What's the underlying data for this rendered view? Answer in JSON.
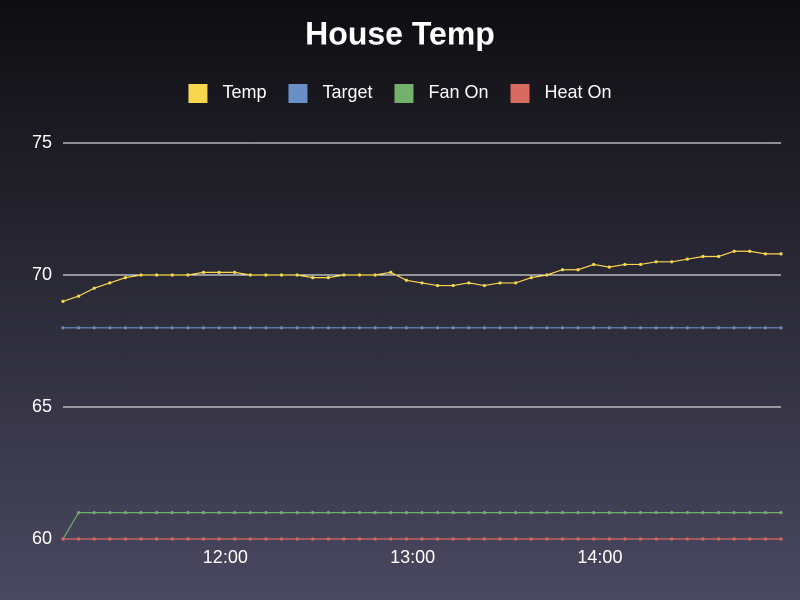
{
  "chart_data": {
    "type": "line",
    "title": "House Temp",
    "x": [
      "11:08",
      "11:13",
      "11:18",
      "11:23",
      "11:28",
      "11:33",
      "11:38",
      "11:43",
      "11:48",
      "11:53",
      "11:58",
      "12:03",
      "12:08",
      "12:13",
      "12:18",
      "12:23",
      "12:28",
      "12:33",
      "12:38",
      "12:43",
      "12:48",
      "12:53",
      "12:58",
      "13:03",
      "13:08",
      "13:13",
      "13:18",
      "13:23",
      "13:28",
      "13:33",
      "13:38",
      "13:43",
      "13:48",
      "13:53",
      "13:58",
      "14:03",
      "14:08",
      "14:13",
      "14:18",
      "14:23",
      "14:28",
      "14:33",
      "14:38",
      "14:43",
      "14:48",
      "14:53",
      "14:58"
    ],
    "series": [
      {
        "name": "Temp",
        "color": "#f8d64e",
        "values": [
          69.0,
          69.2,
          69.5,
          69.7,
          69.9,
          70.0,
          70.0,
          70.0,
          70.0,
          70.1,
          70.1,
          70.1,
          70.0,
          70.0,
          70.0,
          70.0,
          69.9,
          69.9,
          70.0,
          70.0,
          70.0,
          70.1,
          69.8,
          69.7,
          69.6,
          69.6,
          69.7,
          69.6,
          69.7,
          69.7,
          69.9,
          70.0,
          70.2,
          70.2,
          70.4,
          70.3,
          70.4,
          70.4,
          70.5,
          70.5,
          70.6,
          70.7,
          70.7,
          70.9,
          70.9,
          70.8,
          70.8
        ]
      },
      {
        "name": "Target",
        "color": "#6a8fc4",
        "values": [
          68,
          68,
          68,
          68,
          68,
          68,
          68,
          68,
          68,
          68,
          68,
          68,
          68,
          68,
          68,
          68,
          68,
          68,
          68,
          68,
          68,
          68,
          68,
          68,
          68,
          68,
          68,
          68,
          68,
          68,
          68,
          68,
          68,
          68,
          68,
          68,
          68,
          68,
          68,
          68,
          68,
          68,
          68,
          68,
          68,
          68,
          68
        ]
      },
      {
        "name": "Fan On",
        "color": "#72b06c",
        "values": [
          60,
          61,
          61,
          61,
          61,
          61,
          61,
          61,
          61,
          61,
          61,
          61,
          61,
          61,
          61,
          61,
          61,
          61,
          61,
          61,
          61,
          61,
          61,
          61,
          61,
          61,
          61,
          61,
          61,
          61,
          61,
          61,
          61,
          61,
          61,
          61,
          61,
          61,
          61,
          61,
          61,
          61,
          61,
          61,
          61,
          61,
          61
        ]
      },
      {
        "name": "Heat On",
        "color": "#d86a5f",
        "values": [
          60,
          60,
          60,
          60,
          60,
          60,
          60,
          60,
          60,
          60,
          60,
          60,
          60,
          60,
          60,
          60,
          60,
          60,
          60,
          60,
          60,
          60,
          60,
          60,
          60,
          60,
          60,
          60,
          60,
          60,
          60,
          60,
          60,
          60,
          60,
          60,
          60,
          60,
          60,
          60,
          60,
          60,
          60,
          60,
          60,
          60,
          60
        ]
      }
    ],
    "xlim": [
      "11:08",
      "14:58"
    ],
    "xticks": [
      "12:00",
      "13:00",
      "14:00"
    ],
    "ylim": [
      60,
      75
    ],
    "yticks": [
      60,
      65,
      70,
      75
    ],
    "grid": true
  }
}
